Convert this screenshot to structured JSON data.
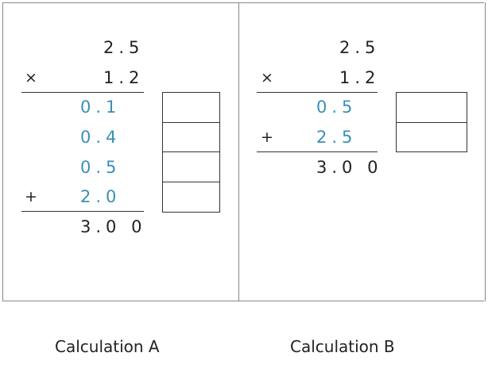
{
  "calculation_a": {
    "top": "2.5",
    "operator_multiply": "×",
    "bottom": "1.2",
    "partials": [
      "0.1",
      "0.4",
      "0.5",
      "2.0"
    ],
    "operator_add": "+",
    "result": "3.0 0",
    "label": "Calculation A"
  },
  "calculation_b": {
    "top": "2.5",
    "operator_multiply": "×",
    "bottom": "1.2",
    "partials": [
      "0.5",
      "2.5"
    ],
    "operator_add": "+",
    "result": "3.0 0",
    "label": "Calculation B"
  },
  "colors": {
    "partial_text": "#3a8fb7",
    "border": "#888888"
  }
}
